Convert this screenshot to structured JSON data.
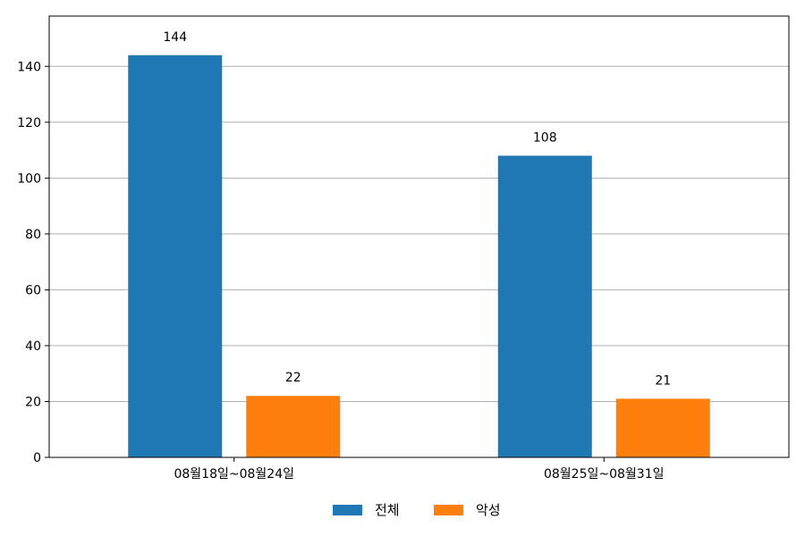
{
  "chart_data": {
    "type": "bar",
    "categories": [
      "08월18일~08월24일",
      "08월25일~08월31일"
    ],
    "series": [
      {
        "name": "전체",
        "values": [
          144,
          108
        ],
        "color": "#1f77b4"
      },
      {
        "name": "악성",
        "values": [
          22,
          21
        ],
        "color": "#ff7f0e"
      }
    ],
    "ylim": [
      0,
      158
    ],
    "yticks": [
      0,
      20,
      40,
      60,
      80,
      100,
      120,
      140
    ],
    "grid": "horizontal",
    "legend": "bottom-center",
    "data_labels": true
  }
}
